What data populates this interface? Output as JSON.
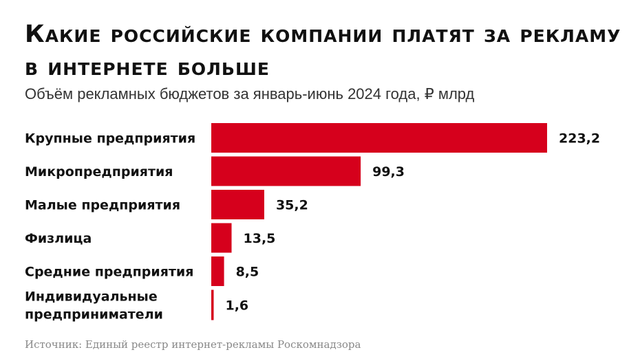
{
  "title": "Какие российские компании платят за рекламу в интернете больше",
  "subtitle": "Объём рекламных бюджетов за январь-июнь 2024 года, ₽ млрд",
  "source": "Источник: Единый реестр интернет-рекламы Роскомнадзора",
  "colors": {
    "bar": "#d6001c"
  },
  "chart_data": {
    "type": "bar",
    "orientation": "horizontal",
    "categories": [
      [
        "Крупные предприятия"
      ],
      [
        "Микропредприятия"
      ],
      [
        "Малые предприятия"
      ],
      [
        "Физлица"
      ],
      [
        "Средние предприятия"
      ],
      [
        "Индивидуальные",
        "предприниматели"
      ]
    ],
    "values": [
      223.2,
      99.3,
      35.2,
      13.5,
      8.5,
      1.6
    ],
    "value_labels": [
      "223,2",
      "99,3",
      "35,2",
      "13,5",
      "8,5",
      "1,6"
    ]
  }
}
